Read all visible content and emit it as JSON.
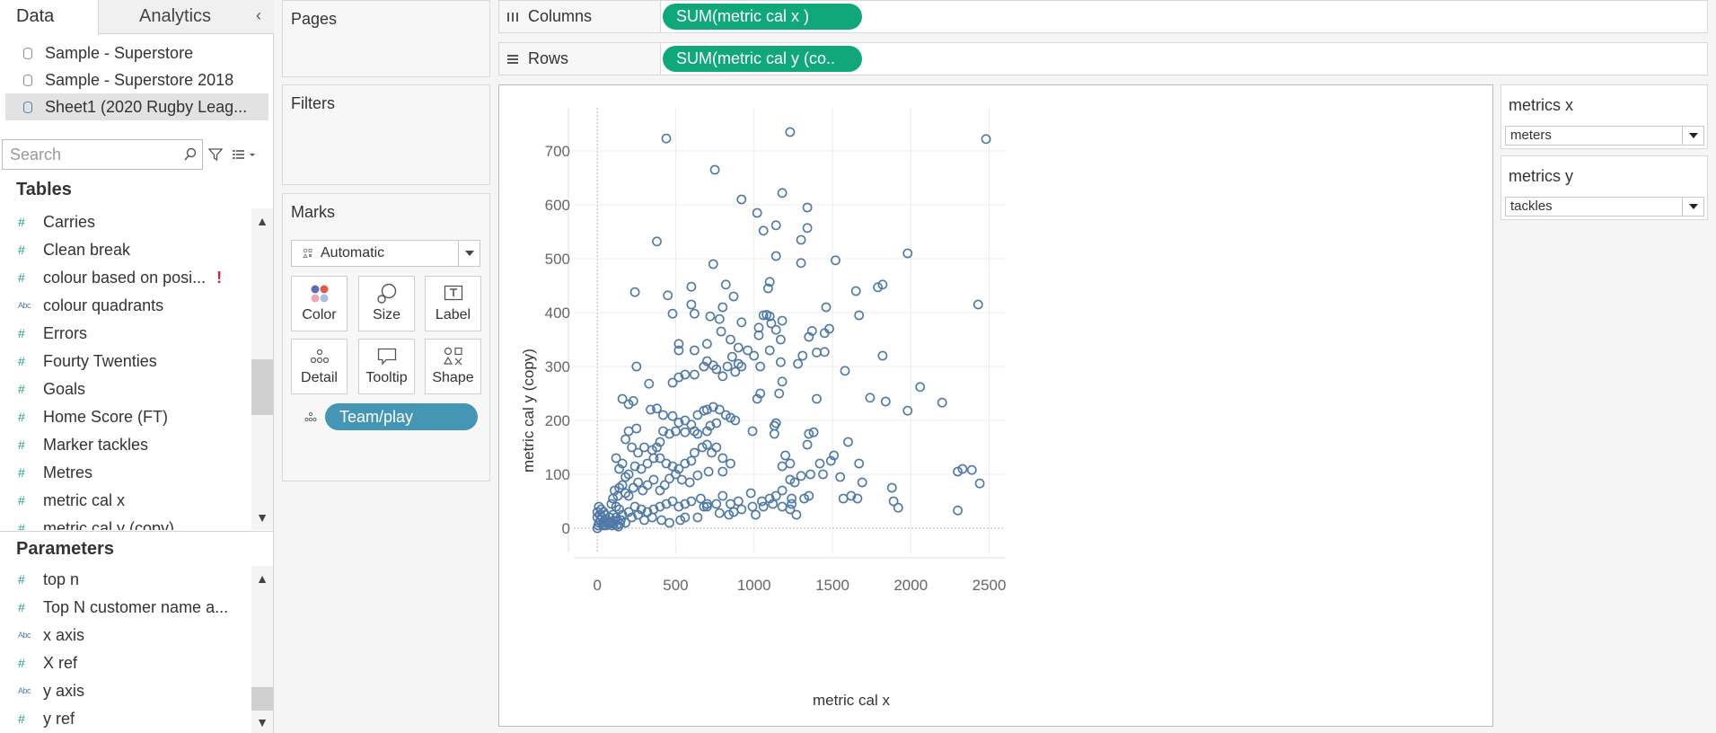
{
  "left_pane": {
    "tabs": [
      {
        "label": "Data"
      },
      {
        "label": "Analytics"
      }
    ],
    "collapse_glyph": "‹",
    "data_sources": [
      {
        "label": "Sample - Superstore"
      },
      {
        "label": "Sample - Superstore 2018"
      },
      {
        "label": "Sheet1 (2020 Rugby Leag..."
      }
    ],
    "search": {
      "placeholder": "Search",
      "value": ""
    },
    "tables_title": "Tables",
    "table_fields": [
      {
        "type": "#",
        "label": "Carries"
      },
      {
        "type": "#",
        "label": "Clean break"
      },
      {
        "type": "#",
        "label": "colour based on posi...",
        "warning": "!"
      },
      {
        "type": "Abc",
        "label": "colour quadrants"
      },
      {
        "type": "#",
        "label": "Errors"
      },
      {
        "type": "#",
        "label": "Fourty Twenties"
      },
      {
        "type": "#",
        "label": "Goals"
      },
      {
        "type": "#",
        "label": "Home Score (FT)"
      },
      {
        "type": "#",
        "label": "Marker tackles"
      },
      {
        "type": "#",
        "label": "Metres"
      },
      {
        "type": "#",
        "label": "metric  cal x"
      },
      {
        "type": "#",
        "label": "metric  cal y (copy)"
      }
    ],
    "parameters_title": "Parameters",
    "parameter_fields": [
      {
        "type": "#",
        "label": "top n"
      },
      {
        "type": "#",
        "label": "Top N customer name a..."
      },
      {
        "type": "Abc",
        "label": "x axis"
      },
      {
        "type": "#",
        "label": "X ref"
      },
      {
        "type": "Abc",
        "label": "y axis"
      },
      {
        "type": "#",
        "label": "y ref"
      }
    ]
  },
  "shelves": {
    "pages_title": "Pages",
    "filters_title": "Filters",
    "marks_title": "Marks",
    "mark_type": "Automatic",
    "mark_buttons": [
      {
        "label": "Color"
      },
      {
        "label": "Size"
      },
      {
        "label": "Label"
      },
      {
        "label": "Detail"
      },
      {
        "label": "Tooltip"
      },
      {
        "label": "Shape"
      }
    ],
    "detail_pill": "Team/play",
    "columns_label": "Columns",
    "columns_pill": "SUM(metric  cal x )",
    "rows_label": "Rows",
    "rows_pill": "SUM(metric  cal y (co.."
  },
  "parameters_panel": [
    {
      "title": "metrics x",
      "value": "meters"
    },
    {
      "title": "metrics y",
      "value": "tackles"
    }
  ],
  "colors": {
    "accent_green": "#10a77a",
    "accent_blue": "#4596b5",
    "mark_color": "#4e79a7"
  },
  "chart_data": {
    "type": "scatter",
    "xlabel": "metric  cal x",
    "ylabel": "metric  cal y (copy)",
    "xlim": [
      -150,
      2600
    ],
    "ylim": [
      -45,
      780
    ],
    "xticks": [
      0,
      500,
      1000,
      1500,
      2000,
      2500
    ],
    "yticks": [
      0,
      100,
      200,
      300,
      400,
      500,
      600,
      700
    ],
    "grid": true,
    "marker": "open-circle",
    "points": [
      [
        440,
        723
      ],
      [
        1230,
        735
      ],
      [
        2480,
        722
      ],
      [
        750,
        665
      ],
      [
        380,
        532
      ],
      [
        920,
        610
      ],
      [
        1020,
        585
      ],
      [
        1060,
        552
      ],
      [
        1140,
        562
      ],
      [
        1180,
        622
      ],
      [
        1340,
        595
      ],
      [
        1340,
        557
      ],
      [
        1300,
        535
      ],
      [
        1140,
        505
      ],
      [
        1300,
        492
      ],
      [
        1520,
        497
      ],
      [
        1980,
        510
      ],
      [
        740,
        490
      ],
      [
        450,
        432
      ],
      [
        600,
        448
      ],
      [
        240,
        438
      ],
      [
        600,
        415
      ],
      [
        620,
        398
      ],
      [
        480,
        398
      ],
      [
        820,
        452
      ],
      [
        870,
        430
      ],
      [
        1100,
        457
      ],
      [
        1090,
        445
      ],
      [
        1460,
        410
      ],
      [
        1650,
        440
      ],
      [
        1790,
        447
      ],
      [
        1820,
        452
      ],
      [
        1670,
        395
      ],
      [
        2430,
        415
      ],
      [
        800,
        410
      ],
      [
        780,
        388
      ],
      [
        720,
        393
      ],
      [
        790,
        365
      ],
      [
        920,
        382
      ],
      [
        1060,
        395
      ],
      [
        1080,
        396
      ],
      [
        1100,
        393
      ],
      [
        1110,
        380
      ],
      [
        1140,
        368
      ],
      [
        1030,
        372
      ],
      [
        1030,
        358
      ],
      [
        1170,
        350
      ],
      [
        1180,
        385
      ],
      [
        1370,
        366
      ],
      [
        1350,
        355
      ],
      [
        1450,
        362
      ],
      [
        1480,
        370
      ],
      [
        520,
        342
      ],
      [
        520,
        330
      ],
      [
        620,
        330
      ],
      [
        700,
        342
      ],
      [
        850,
        350
      ],
      [
        900,
        335
      ],
      [
        960,
        330
      ],
      [
        860,
        318
      ],
      [
        830,
        300
      ],
      [
        740,
        302
      ],
      [
        800,
        282
      ],
      [
        900,
        305
      ],
      [
        1000,
        320
      ],
      [
        1100,
        330
      ],
      [
        1170,
        308
      ],
      [
        1310,
        320
      ],
      [
        1400,
        326
      ],
      [
        1450,
        327
      ],
      [
        1580,
        292
      ],
      [
        1820,
        320
      ],
      [
        250,
        300
      ],
      [
        330,
        268
      ],
      [
        480,
        270
      ],
      [
        520,
        280
      ],
      [
        560,
        285
      ],
      [
        620,
        285
      ],
      [
        680,
        300
      ],
      [
        700,
        310
      ],
      [
        760,
        295
      ],
      [
        880,
        290
      ],
      [
        920,
        300
      ],
      [
        1040,
        300
      ],
      [
        1180,
        272
      ],
      [
        1160,
        250
      ],
      [
        1040,
        250
      ],
      [
        1020,
        240
      ],
      [
        1280,
        305
      ],
      [
        1400,
        240
      ],
      [
        1740,
        242
      ],
      [
        1840,
        235
      ],
      [
        2060,
        262
      ],
      [
        2200,
        233
      ],
      [
        1980,
        218
      ],
      [
        160,
        240
      ],
      [
        200,
        230
      ],
      [
        230,
        236
      ],
      [
        340,
        220
      ],
      [
        380,
        222
      ],
      [
        420,
        210
      ],
      [
        480,
        208
      ],
      [
        520,
        196
      ],
      [
        560,
        200
      ],
      [
        600,
        192
      ],
      [
        640,
        210
      ],
      [
        680,
        218
      ],
      [
        700,
        220
      ],
      [
        740,
        225
      ],
      [
        780,
        220
      ],
      [
        820,
        210
      ],
      [
        850,
        205
      ],
      [
        880,
        200
      ],
      [
        760,
        195
      ],
      [
        720,
        190
      ],
      [
        700,
        180
      ],
      [
        640,
        175
      ],
      [
        620,
        180
      ],
      [
        560,
        178
      ],
      [
        500,
        180
      ],
      [
        460,
        175
      ],
      [
        420,
        180
      ],
      [
        400,
        160
      ],
      [
        380,
        150
      ],
      [
        350,
        145
      ],
      [
        300,
        150
      ],
      [
        260,
        140
      ],
      [
        220,
        150
      ],
      [
        180,
        165
      ],
      [
        200,
        180
      ],
      [
        250,
        185
      ],
      [
        990,
        180
      ],
      [
        1130,
        190
      ],
      [
        1130,
        175
      ],
      [
        1140,
        195
      ],
      [
        1350,
        175
      ],
      [
        1380,
        178
      ],
      [
        1340,
        155
      ],
      [
        1200,
        135
      ],
      [
        1180,
        115
      ],
      [
        1230,
        120
      ],
      [
        1420,
        120
      ],
      [
        1510,
        135
      ],
      [
        1490,
        125
      ],
      [
        1600,
        160
      ],
      [
        1670,
        120
      ],
      [
        800,
        130
      ],
      [
        760,
        150
      ],
      [
        730,
        140
      ],
      [
        700,
        155
      ],
      [
        670,
        150
      ],
      [
        620,
        140
      ],
      [
        600,
        125
      ],
      [
        560,
        120
      ],
      [
        520,
        110
      ],
      [
        480,
        115
      ],
      [
        440,
        120
      ],
      [
        400,
        130
      ],
      [
        360,
        130
      ],
      [
        320,
        120
      ],
      [
        280,
        110
      ],
      [
        240,
        115
      ],
      [
        200,
        100
      ],
      [
        180,
        95
      ],
      [
        160,
        120
      ],
      [
        140,
        110
      ],
      [
        120,
        130
      ],
      [
        800,
        105
      ],
      [
        850,
        120
      ],
      [
        710,
        105
      ],
      [
        640,
        98
      ],
      [
        590,
        85
      ],
      [
        540,
        90
      ],
      [
        500,
        100
      ],
      [
        460,
        92
      ],
      [
        430,
        80
      ],
      [
        400,
        70
      ],
      [
        360,
        90
      ],
      [
        320,
        80
      ],
      [
        290,
        70
      ],
      [
        260,
        85
      ],
      [
        230,
        75
      ],
      [
        200,
        60
      ],
      [
        180,
        65
      ],
      [
        160,
        80
      ],
      [
        140,
        75
      ],
      [
        130,
        60
      ],
      [
        110,
        70
      ],
      [
        100,
        55
      ],
      [
        90,
        45
      ],
      [
        1300,
        97
      ],
      [
        1360,
        100
      ],
      [
        1440,
        100
      ],
      [
        1550,
        95
      ],
      [
        1690,
        85
      ],
      [
        1880,
        75
      ],
      [
        2330,
        110
      ],
      [
        2390,
        108
      ],
      [
        2300,
        105
      ],
      [
        2440,
        83
      ],
      [
        1230,
        90
      ],
      [
        1260,
        85
      ],
      [
        1180,
        70
      ],
      [
        1140,
        60
      ],
      [
        1100,
        55
      ],
      [
        1050,
        50
      ],
      [
        980,
        65
      ],
      [
        900,
        50
      ],
      [
        850,
        45
      ],
      [
        800,
        60
      ],
      [
        760,
        45
      ],
      [
        700,
        40
      ],
      [
        660,
        55
      ],
      [
        600,
        50
      ],
      [
        560,
        45
      ],
      [
        520,
        40
      ],
      [
        480,
        50
      ],
      [
        440,
        45
      ],
      [
        400,
        40
      ],
      [
        360,
        35
      ],
      [
        320,
        30
      ],
      [
        280,
        35
      ],
      [
        240,
        40
      ],
      [
        200,
        30
      ],
      [
        160,
        25
      ],
      [
        140,
        35
      ],
      [
        120,
        40
      ],
      [
        1320,
        55
      ],
      [
        1350,
        60
      ],
      [
        1240,
        55
      ],
      [
        1240,
        45
      ],
      [
        1230,
        35
      ],
      [
        1180,
        40
      ],
      [
        1120,
        45
      ],
      [
        1060,
        40
      ],
      [
        990,
        40
      ],
      [
        920,
        35
      ],
      [
        870,
        30
      ],
      [
        840,
        25
      ],
      [
        780,
        28
      ],
      [
        700,
        45
      ],
      [
        680,
        40
      ],
      [
        640,
        20
      ],
      [
        560,
        20
      ],
      [
        530,
        15
      ],
      [
        460,
        10
      ],
      [
        410,
        15
      ],
      [
        350,
        20
      ],
      [
        300,
        15
      ],
      [
        260,
        25
      ],
      [
        220,
        20
      ],
      [
        180,
        10
      ],
      [
        150,
        15
      ],
      [
        120,
        20
      ],
      [
        100,
        25
      ],
      [
        80,
        20
      ],
      [
        60,
        15
      ],
      [
        50,
        25
      ],
      [
        40,
        30
      ],
      [
        30,
        20
      ],
      [
        20,
        15
      ],
      [
        10,
        10
      ],
      [
        5,
        5
      ],
      [
        0,
        0
      ],
      [
        15,
        25
      ],
      [
        25,
        35
      ],
      [
        35,
        5
      ],
      [
        45,
        10
      ],
      [
        55,
        5
      ],
      [
        65,
        10
      ],
      [
        75,
        8
      ],
      [
        85,
        12
      ],
      [
        95,
        5
      ],
      [
        105,
        8
      ],
      [
        115,
        14
      ],
      [
        125,
        6
      ],
      [
        135,
        3
      ],
      [
        145,
        8
      ],
      [
        0,
        20
      ],
      [
        0,
        30
      ],
      [
        10,
        40
      ],
      [
        1570,
        55
      ],
      [
        1620,
        60
      ],
      [
        1660,
        55
      ],
      [
        1890,
        50
      ],
      [
        1920,
        38
      ],
      [
        2300,
        33
      ],
      [
        1270,
        25
      ],
      [
        1010,
        25
      ]
    ]
  }
}
